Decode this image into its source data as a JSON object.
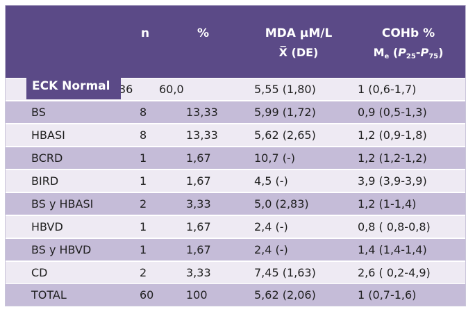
{
  "header": {
    "n": "n",
    "pct": "%",
    "mda_line1": "MDA µM/L",
    "mda_line2": "X̅ (DE)",
    "cohb_line1": "COHb %",
    "cohb_line2_prefix": "M",
    "cohb_line2_sub_e": "e",
    "cohb_line2_open": " (",
    "cohb_p": "P",
    "cohb_sub_25": "25",
    "cohb_dash": "-",
    "cohb_sub_75": "75",
    "cohb_close": ")"
  },
  "rows": [
    {
      "label": "ECK Normal",
      "n": "36",
      "pct": "60,0",
      "mda": "5,55 (1,80)",
      "cohb": "1 (0,6-1,7)"
    },
    {
      "label": "BS",
      "n": "8",
      "pct": "13,33",
      "mda": "5,99 (1,72)",
      "cohb": "0,9 (0,5-1,3)"
    },
    {
      "label": "HBASI",
      "n": "8",
      "pct": "13,33",
      "mda": "5,62 (2,65)",
      "cohb": "1,2 (0,9-1,8)"
    },
    {
      "label": "BCRD",
      "n": "1",
      "pct": "1,67",
      "mda": "10,7 (-)",
      "cohb": "1,2 (1,2-1,2)"
    },
    {
      "label": "BIRD",
      "n": "1",
      "pct": "1,67",
      "mda": "4,5 (-)",
      "cohb": "3,9 (3,9-3,9)"
    },
    {
      "label": "BS y HBASI",
      "n": "2",
      "pct": "3,33",
      "mda": "5,0 (2,83)",
      "cohb": "1,2 (1-1,4)"
    },
    {
      "label": "HBVD",
      "n": "1",
      "pct": "1,67",
      "mda": "2,4 (-)",
      "cohb": "0,8 ( 0,8-0,8)"
    },
    {
      "label": "BS y HBVD",
      "n": "1",
      "pct": "1,67",
      "mda": "2,4 (-)",
      "cohb": "1,4 (1,4-1,4)"
    },
    {
      "label": "CD",
      "n": "2",
      "pct": "3,33",
      "mda": "7,45 (1,63)",
      "cohb": "2,6 ( 0,2-4,9)"
    },
    {
      "label": "TOTAL",
      "n": "60",
      "pct": "100",
      "mda": "5,62 (2,06)",
      "cohb": "1 (0,7-1,6)"
    }
  ]
}
